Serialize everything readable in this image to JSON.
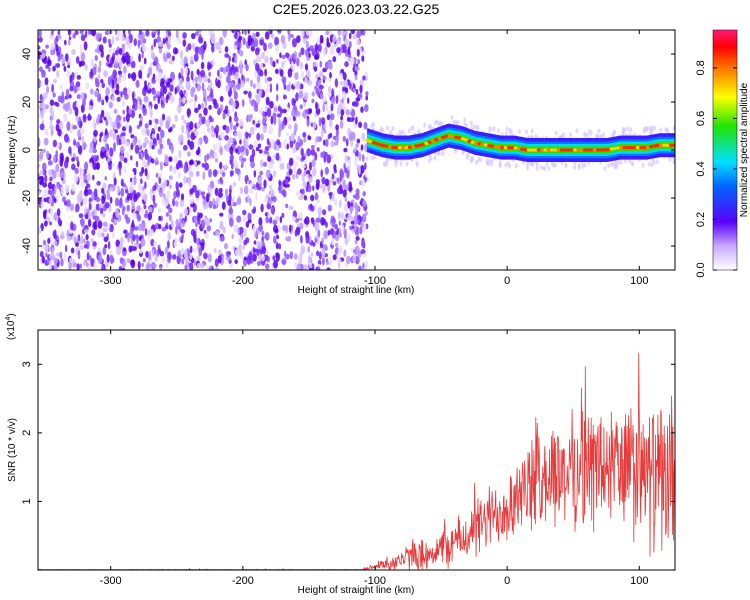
{
  "title": "C2E5.2026.023.03.22.G25",
  "chart_data": [
    {
      "type": "heatmap",
      "xlabel": "Height of straight line (km)",
      "ylabel": "Frequency (Hz)",
      "xlim": [
        -355,
        127
      ],
      "ylim": [
        -50,
        50
      ],
      "xticks": [
        -300,
        -200,
        -100,
        0,
        100
      ],
      "yticks": [
        -40,
        -20,
        0,
        20,
        40
      ],
      "noise_region_x": [
        -355,
        -106
      ],
      "signal_trace": {
        "x": [
          -106,
          -95,
          -85,
          -75,
          -65,
          -55,
          -45,
          -35,
          -25,
          -15,
          -5,
          5,
          15,
          25,
          35,
          45,
          55,
          65,
          75,
          85,
          95,
          105,
          115,
          127
        ],
        "freq": [
          4,
          2,
          1,
          1,
          2,
          4,
          6,
          5,
          3,
          2,
          1,
          1,
          0,
          0,
          0,
          0,
          0,
          0,
          0,
          1,
          1,
          1,
          2,
          2
        ]
      },
      "colorbar": {
        "label": "Normalized spectral amplitude",
        "range": [
          0,
          0.95
        ],
        "ticks": [
          0.0,
          0.2,
          0.4,
          0.6,
          0.8
        ]
      }
    },
    {
      "type": "line",
      "xlabel": "Height of straight line (km)",
      "ylabel": "SNR (10 * v/v)",
      "scale_label": "(x10",
      "scale_exp": "4",
      "xlim": [
        -355,
        127
      ],
      "ylim": [
        0,
        3.5
      ],
      "xticks": [
        -300,
        -200,
        -100,
        0,
        100
      ],
      "yticks": [
        1,
        2,
        3
      ],
      "color": "#e83a3a",
      "envelope": {
        "x": [
          -355,
          -110,
          -100,
          -90,
          -80,
          -70,
          -60,
          -50,
          -40,
          -30,
          -20,
          -10,
          0,
          10,
          20,
          30,
          40,
          50,
          60,
          70,
          80,
          90,
          100,
          110,
          120,
          127
        ],
        "mean": [
          0.0,
          0.0,
          0.05,
          0.1,
          0.15,
          0.2,
          0.25,
          0.3,
          0.4,
          0.5,
          0.65,
          0.8,
          0.95,
          1.1,
          1.25,
          1.35,
          1.4,
          1.45,
          1.5,
          1.5,
          1.5,
          1.45,
          1.4,
          1.35,
          1.3,
          1.3
        ],
        "spread": [
          0.01,
          0.01,
          0.06,
          0.1,
          0.15,
          0.2,
          0.22,
          0.25,
          0.3,
          0.35,
          0.4,
          0.45,
          0.5,
          0.55,
          0.6,
          0.65,
          0.7,
          0.75,
          0.8,
          0.85,
          0.9,
          0.9,
          0.95,
          0.95,
          0.95,
          0.95
        ]
      }
    }
  ]
}
